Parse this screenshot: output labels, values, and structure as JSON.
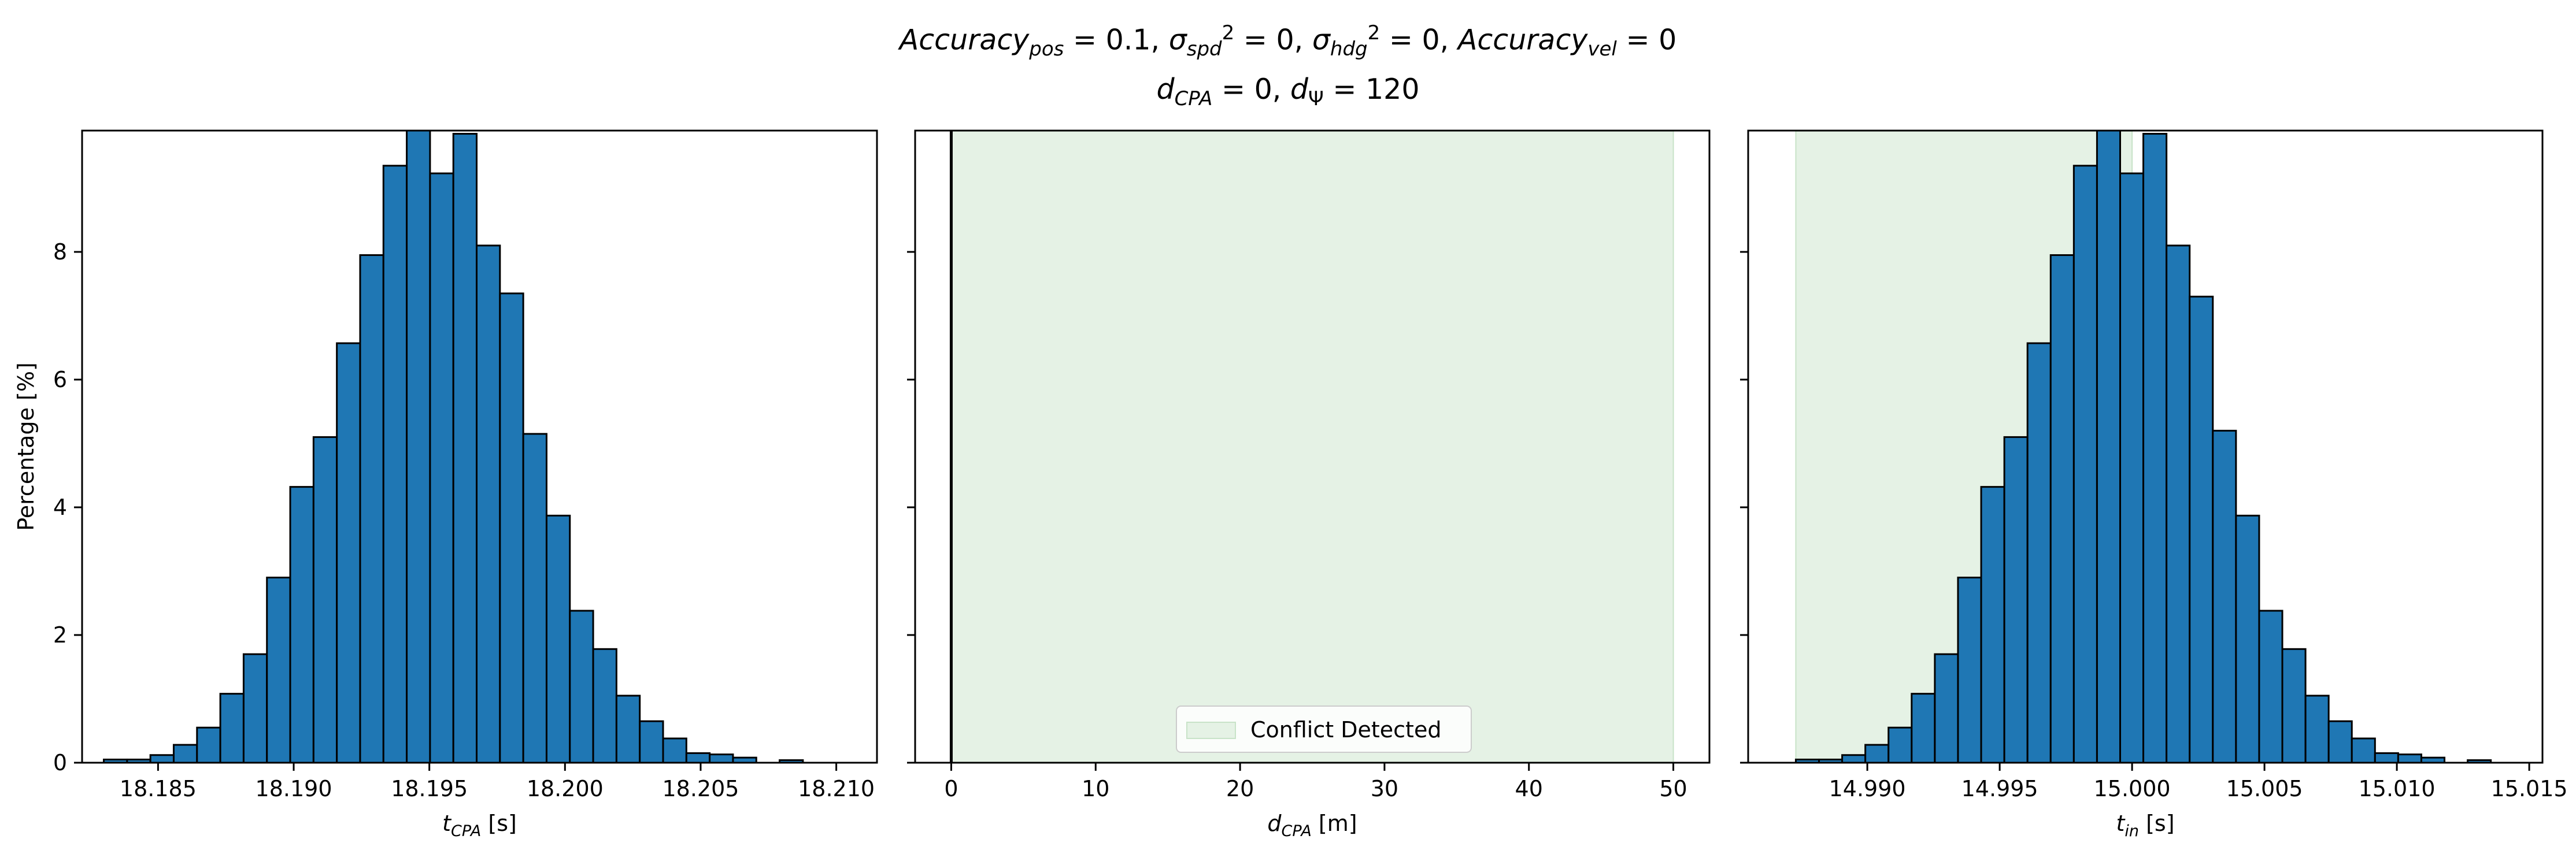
{
  "title": {
    "line1_parts": [
      {
        "t": "Accuracy",
        "i": true
      },
      {
        "t": "pos",
        "i": true,
        "sub": true
      },
      {
        "t": " = 0.1, "
      },
      {
        "t": "σ",
        "i": true
      },
      {
        "t": "spd",
        "i": true,
        "sub": true
      },
      {
        "t": "2",
        "sup": true
      },
      {
        "t": " = 0, "
      },
      {
        "t": "σ",
        "i": true
      },
      {
        "t": "hdg",
        "i": true,
        "sub": true
      },
      {
        "t": "2",
        "sup": true
      },
      {
        "t": " = 0, "
      },
      {
        "t": "Accuracy",
        "i": true
      },
      {
        "t": "vel",
        "i": true,
        "sub": true
      },
      {
        "t": " = 0"
      }
    ],
    "line2_parts": [
      {
        "t": "d",
        "i": true
      },
      {
        "t": "CPA",
        "i": true,
        "sub": true
      },
      {
        "t": " = 0, "
      },
      {
        "t": "d",
        "i": true
      },
      {
        "t": "Ψ",
        "sub": true
      },
      {
        "t": " = 120"
      }
    ]
  },
  "colors": {
    "bar_fill": "#1f77b4",
    "bar_edge": "#000000",
    "conflict_fill": "#e5f2e5",
    "conflict_edge": "#c8e3c8"
  },
  "chart_data": [
    {
      "type": "bar",
      "xlabel": {
        "main": "t",
        "sub": "CPA",
        "unit": " [s]"
      },
      "ylabel": "Percentage [%]",
      "xlim": [
        18.1822,
        18.2115
      ],
      "ylim": [
        0,
        9.9
      ],
      "xticks": [
        18.185,
        18.19,
        18.195,
        18.2,
        18.205,
        18.21
      ],
      "xtick_labels": [
        "18.185",
        "18.190",
        "18.195",
        "18.200",
        "18.205",
        "18.210"
      ],
      "yticks": [
        0,
        2,
        4,
        6,
        8
      ],
      "ytick_labels": [
        "0",
        "2",
        "4",
        "6",
        "8"
      ],
      "bin_start": 18.183,
      "bin_width": 0.000859,
      "values": [
        0.05,
        0.05,
        0.12,
        0.28,
        0.55,
        1.08,
        1.7,
        2.9,
        4.32,
        5.1,
        6.57,
        7.95,
        9.35,
        10.05,
        9.23,
        9.85,
        8.1,
        7.35,
        5.15,
        3.87,
        2.38,
        1.78,
        1.05,
        0.65,
        0.38,
        0.15,
        0.13,
        0.08,
        0.0,
        0.04,
        0.0
      ]
    },
    {
      "type": "area",
      "xlabel": {
        "main": "d",
        "sub": "CPA",
        "unit": " [m]"
      },
      "ylabel": "",
      "xlim": [
        -2.5,
        52.5
      ],
      "ylim": [
        0,
        9.9
      ],
      "xticks": [
        0,
        10,
        20,
        30,
        40,
        50
      ],
      "xtick_labels": [
        "0",
        "10",
        "20",
        "30",
        "40",
        "50"
      ],
      "yticks": [
        0,
        2,
        4,
        6,
        8
      ],
      "conflict_region": [
        0,
        50
      ],
      "spike_x": 0,
      "legend": {
        "label": "Conflict Detected",
        "position": "lower center"
      }
    },
    {
      "type": "bar",
      "xlabel": {
        "main": "t",
        "sub": "in",
        "unit": " [s]"
      },
      "ylabel": "",
      "xlim": [
        14.9855,
        15.0155
      ],
      "ylim": [
        0,
        9.9
      ],
      "xticks": [
        14.99,
        14.995,
        15.0,
        15.005,
        15.01,
        15.015
      ],
      "xtick_labels": [
        "14.990",
        "14.995",
        "15.000",
        "15.005",
        "15.010",
        "15.015"
      ],
      "yticks": [
        0,
        2,
        4,
        6,
        8
      ],
      "bin_start": 14.9873,
      "bin_width": 0.000875,
      "conflict_region": [
        14.9873,
        15.0
      ],
      "values": [
        0.05,
        0.05,
        0.12,
        0.28,
        0.55,
        1.08,
        1.7,
        2.9,
        4.32,
        5.1,
        6.57,
        7.95,
        9.35,
        10.05,
        9.23,
        9.85,
        8.1,
        7.3,
        5.2,
        3.87,
        2.38,
        1.78,
        1.05,
        0.65,
        0.38,
        0.15,
        0.13,
        0.08,
        0.0,
        0.04,
        0.0
      ]
    }
  ]
}
